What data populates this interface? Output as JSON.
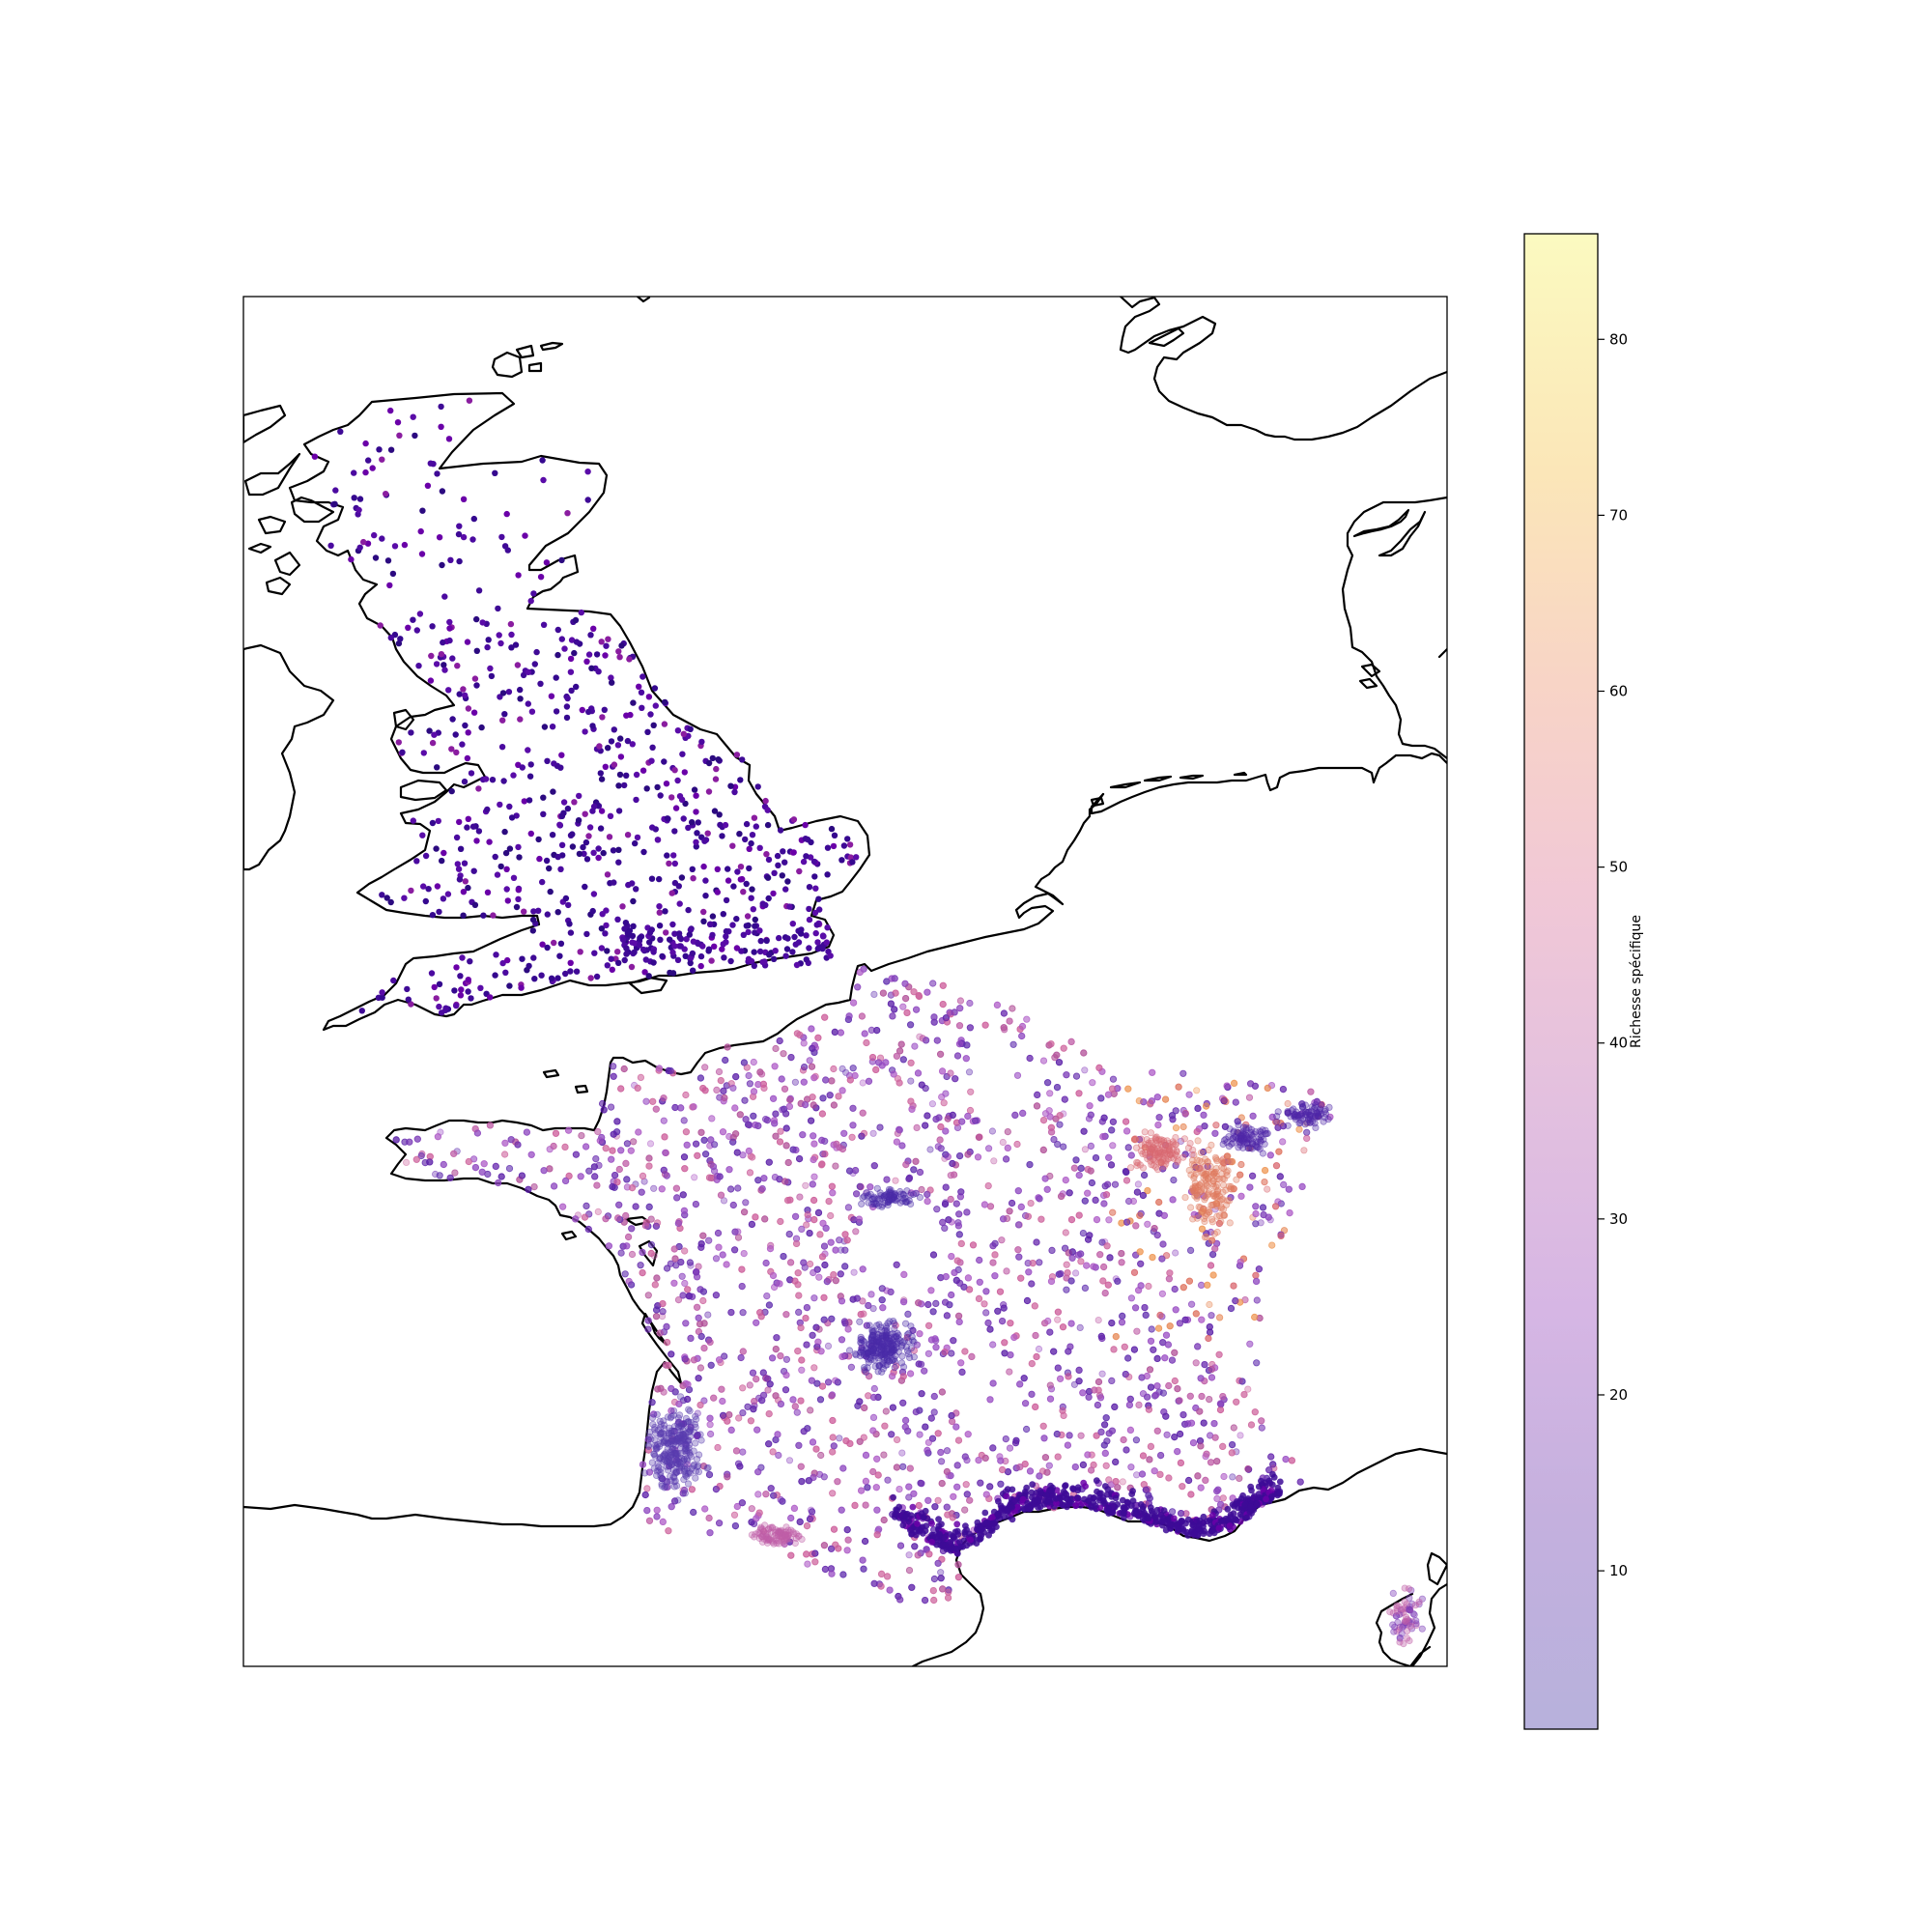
{
  "colorbar": {
    "label": "Richesse spécifique",
    "min": 1,
    "max": 86,
    "ticks": [
      "10",
      "20",
      "30",
      "40",
      "50",
      "60",
      "70",
      "80"
    ],
    "colormap": "plasma",
    "alpha": 0.3
  },
  "map": {
    "coastline_color": "#000000",
    "regions": [
      "Great Britain",
      "France",
      "Corsica",
      "Ireland",
      "Netherlands",
      "Germany",
      "Denmark"
    ],
    "observations": {
      "great_britain": "solid dark-purple points (low richness)",
      "france": "semi-transparent points, purple to orange (higher richness in east)",
      "mediterranean_coast": "dense dark-purple clusters"
    }
  },
  "chart_data": {
    "type": "scatter",
    "title": "",
    "xlabel": "",
    "ylabel": "",
    "color_value": "Richesse spécifique",
    "color_range": [
      1,
      86
    ],
    "series": [
      {
        "region": "Great Britain",
        "value_range": [
          2,
          12
        ],
        "approx_points": 800,
        "opacity": 1.0
      },
      {
        "region": "France",
        "value_range": [
          5,
          70
        ],
        "approx_points": 8000,
        "opacity": 0.3
      },
      {
        "region": "Corsica",
        "value_range": [
          8,
          30
        ],
        "approx_points": 60,
        "opacity": 0.3
      }
    ]
  }
}
